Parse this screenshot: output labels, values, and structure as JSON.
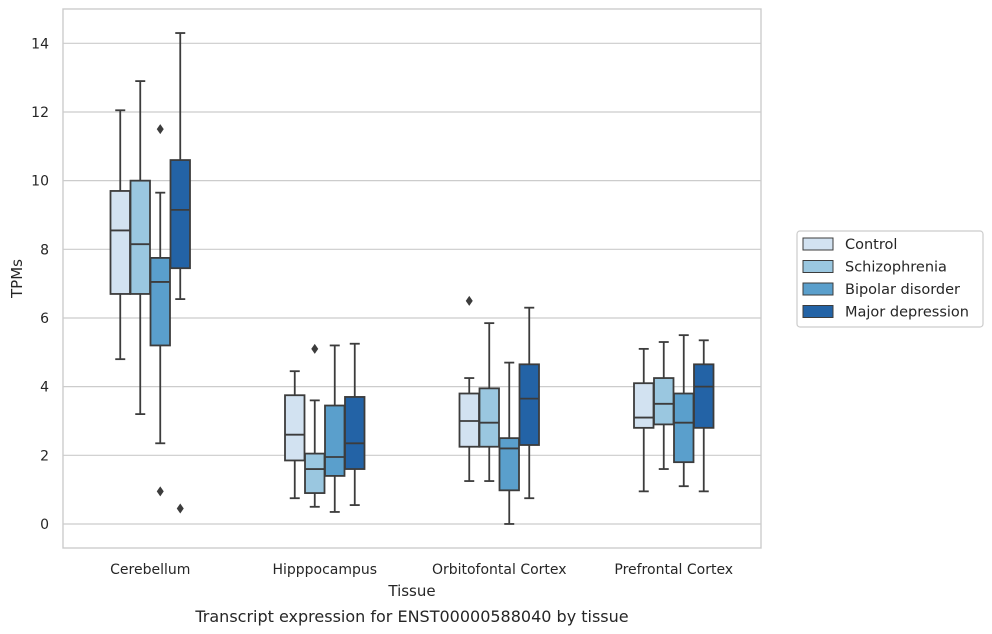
{
  "chart_data": {
    "type": "box",
    "title": "Transcript expression for ENST00000588040 by tissue",
    "xlabel": "Tissue",
    "ylabel": "TPMs",
    "ylim": [
      -0.7,
      15
    ],
    "yticks": [
      0,
      2,
      4,
      6,
      8,
      10,
      12,
      14
    ],
    "grid": "horizontal",
    "legend_position": "right",
    "categories": [
      "Cerebellum",
      "Hipppocampus",
      "Orbitofontal Cortex",
      "Prefrontal Cortex"
    ],
    "series": [
      {
        "name": "Control",
        "color": "#d2e2f1",
        "boxes": [
          {
            "whisker_low": 4.8,
            "q1": 6.7,
            "median": 8.55,
            "q3": 9.7,
            "whisker_high": 12.05,
            "outliers": []
          },
          {
            "whisker_low": 0.75,
            "q1": 1.85,
            "median": 2.6,
            "q3": 3.75,
            "whisker_high": 4.45,
            "outliers": []
          },
          {
            "whisker_low": 1.25,
            "q1": 2.25,
            "median": 3.0,
            "q3": 3.8,
            "whisker_high": 4.25,
            "outliers": [
              6.5
            ]
          },
          {
            "whisker_low": 0.95,
            "q1": 2.8,
            "median": 3.1,
            "q3": 4.1,
            "whisker_high": 5.1,
            "outliers": []
          }
        ]
      },
      {
        "name": "Schizophrenia",
        "color": "#9ac7e0",
        "boxes": [
          {
            "whisker_low": 3.2,
            "q1": 6.7,
            "median": 8.15,
            "q3": 10.0,
            "whisker_high": 12.9,
            "outliers": []
          },
          {
            "whisker_low": 0.5,
            "q1": 0.9,
            "median": 1.6,
            "q3": 2.05,
            "whisker_high": 3.6,
            "outliers": [
              5.1
            ]
          },
          {
            "whisker_low": 1.25,
            "q1": 2.25,
            "median": 2.95,
            "q3": 3.95,
            "whisker_high": 5.85,
            "outliers": []
          },
          {
            "whisker_low": 1.6,
            "q1": 2.9,
            "median": 3.5,
            "q3": 4.25,
            "whisker_high": 5.3,
            "outliers": []
          }
        ]
      },
      {
        "name": "Bipolar disorder",
        "color": "#5a9fcc",
        "boxes": [
          {
            "whisker_low": 2.35,
            "q1": 5.2,
            "median": 7.05,
            "q3": 7.75,
            "whisker_high": 9.65,
            "outliers": [
              11.5,
              0.95
            ]
          },
          {
            "whisker_low": 0.35,
            "q1": 1.4,
            "median": 1.95,
            "q3": 3.45,
            "whisker_high": 5.2,
            "outliers": []
          },
          {
            "whisker_low": 0.0,
            "q1": 0.98,
            "median": 2.2,
            "q3": 2.5,
            "whisker_high": 4.7,
            "outliers": []
          },
          {
            "whisker_low": 1.1,
            "q1": 1.8,
            "median": 2.95,
            "q3": 3.8,
            "whisker_high": 5.5,
            "outliers": []
          }
        ]
      },
      {
        "name": "Major depression",
        "color": "#2363a6",
        "boxes": [
          {
            "whisker_low": 6.55,
            "q1": 7.45,
            "median": 9.15,
            "q3": 10.6,
            "whisker_high": 14.3,
            "outliers": [
              0.45
            ]
          },
          {
            "whisker_low": 0.55,
            "q1": 1.6,
            "median": 2.35,
            "q3": 3.7,
            "whisker_high": 5.25,
            "outliers": []
          },
          {
            "whisker_low": 0.75,
            "q1": 2.3,
            "median": 3.65,
            "q3": 4.65,
            "whisker_high": 6.3,
            "outliers": []
          },
          {
            "whisker_low": 0.95,
            "q1": 2.8,
            "median": 4.0,
            "q3": 4.65,
            "whisker_high": 5.35,
            "outliers": []
          }
        ]
      }
    ]
  }
}
